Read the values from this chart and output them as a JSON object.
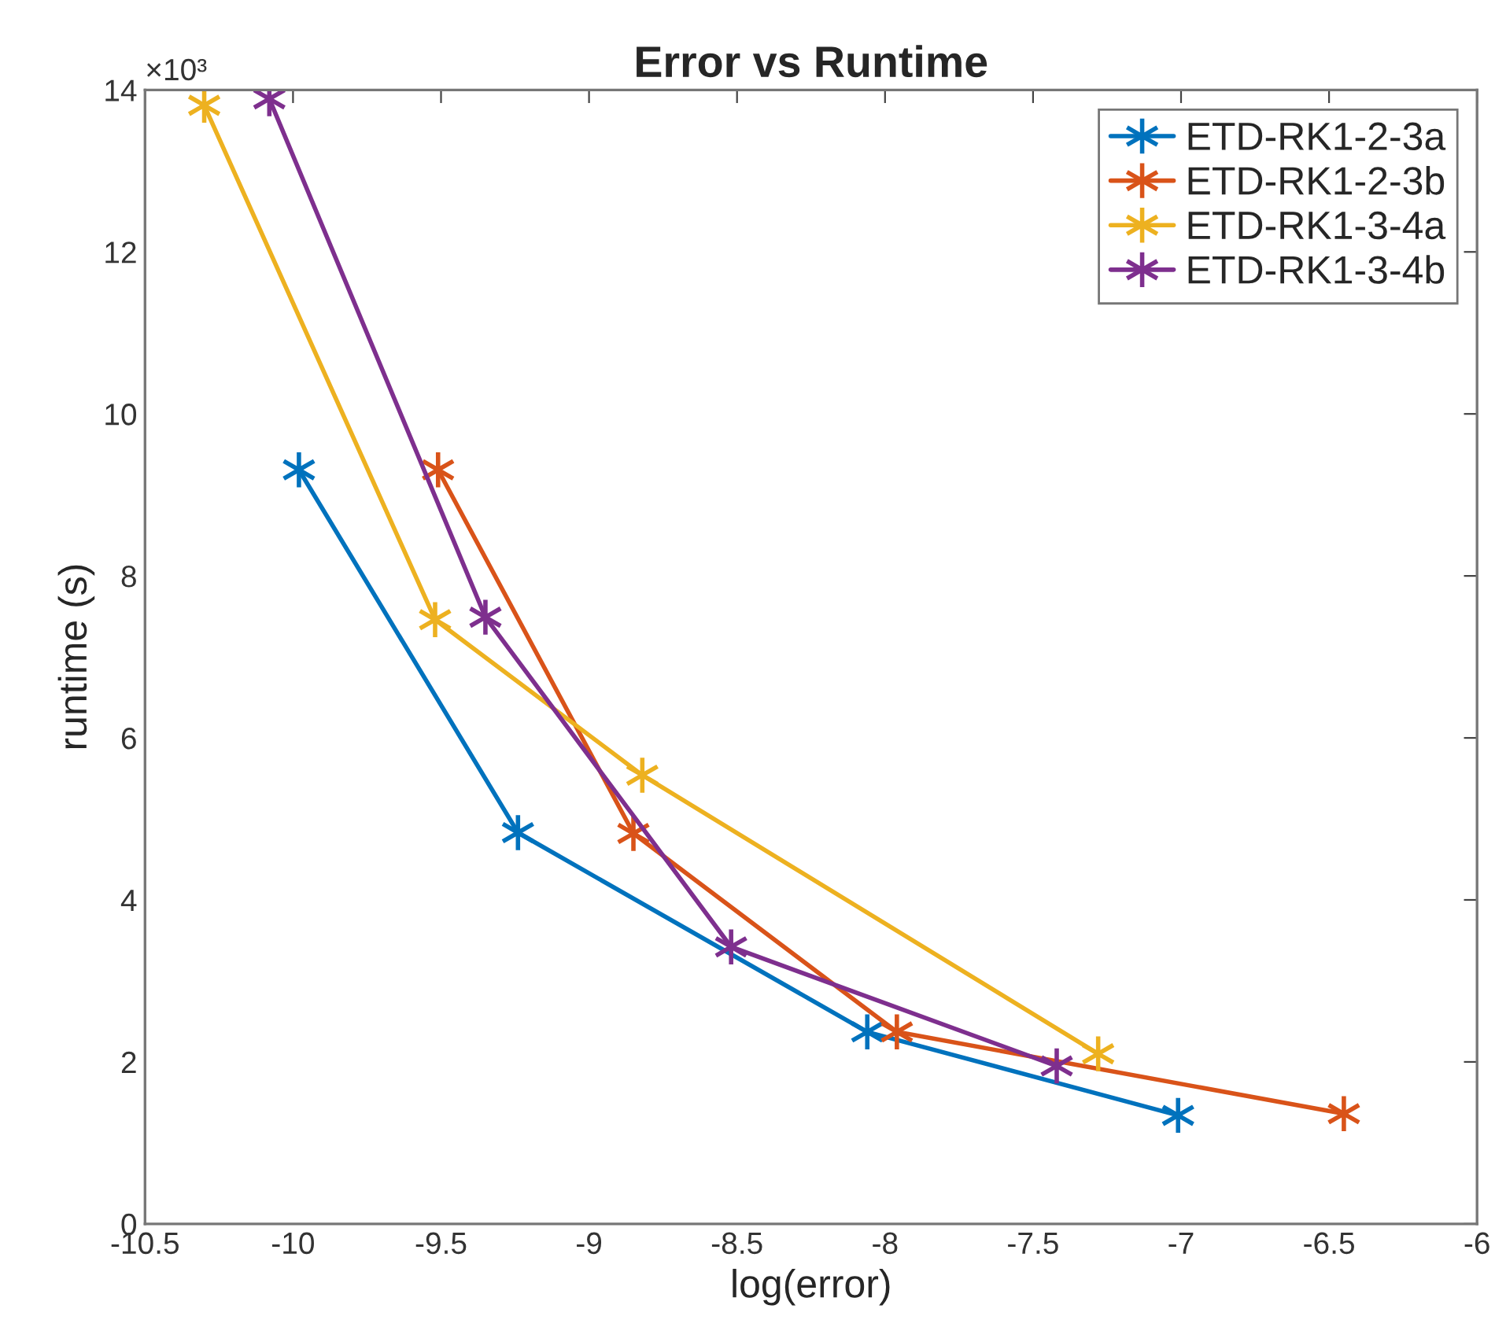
{
  "chart_data": {
    "type": "line",
    "title": "Error vs Runtime",
    "xlabel": "log(error)",
    "ylabel": "runtime (s)",
    "annotations": [
      "×10³"
    ],
    "series": [
      {
        "name": "ETD-RK1-2-3a",
        "color": "#0072bd",
        "x": [
          -9.98,
          -9.24,
          -8.06,
          -7.01
        ],
        "values": [
          9.31,
          4.83,
          2.37,
          1.34
        ]
      },
      {
        "name": "ETD-RK1-2-3b",
        "color": "#d95319",
        "x": [
          -9.51,
          -8.85,
          -7.96,
          -6.45
        ],
        "values": [
          9.31,
          4.82,
          2.37,
          1.36
        ]
      },
      {
        "name": "ETD-RK1-3-4a",
        "color": "#edb120",
        "x": [
          -10.3,
          -9.52,
          -8.82,
          -7.28
        ],
        "values": [
          13.81,
          7.46,
          5.54,
          2.1
        ]
      },
      {
        "name": "ETD-RK1-3-4b",
        "color": "#7e2f8e",
        "x": [
          -10.08,
          -9.35,
          -8.52,
          -7.42
        ],
        "values": [
          13.89,
          7.49,
          3.42,
          1.95
        ]
      }
    ],
    "xlim": [
      -10.5,
      -6
    ],
    "xticks": [
      -10.5,
      -10,
      -9.5,
      -9,
      -8.5,
      -8,
      -7.5,
      -7,
      -6.5,
      -6
    ],
    "ylim": [
      0,
      14
    ],
    "yticks": [
      0,
      2,
      4,
      6,
      8,
      10,
      12,
      14
    ],
    "grid": false,
    "legend": "top right",
    "marker": "cross",
    "line_style": "solid"
  }
}
